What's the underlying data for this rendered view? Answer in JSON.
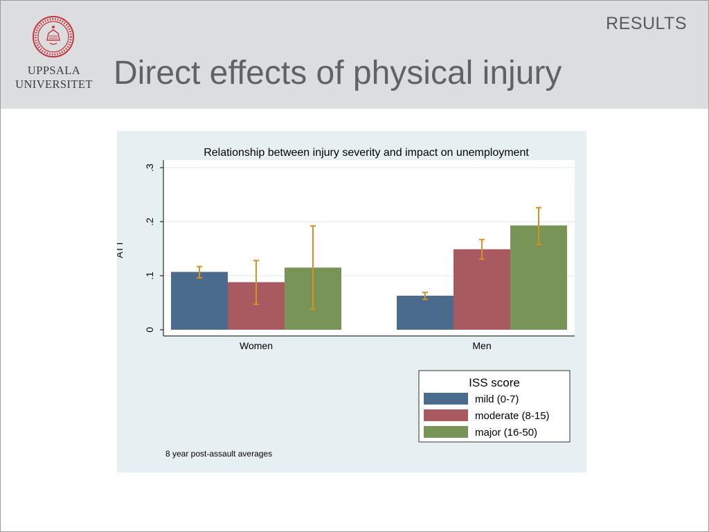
{
  "header": {
    "section_label": "RESULTS",
    "title": "Direct effects of physical injury"
  },
  "logo": {
    "line1": "UPPSALA",
    "line2": "UNIVERSITET",
    "seal_icon": "university-seal-icon"
  },
  "colors": {
    "header_band": "#dcdddf",
    "panel": "#e6eff1",
    "mild": "#4a6b8c",
    "moderate": "#a85a60",
    "major": "#789456",
    "error_bar": "#d99121",
    "seal": "#c8323c"
  },
  "chart_data": {
    "type": "bar",
    "title": "Relationship between injury severity and impact on unemployment",
    "ylabel": "ATT",
    "xlabel": "",
    "ylim": [
      0,
      0.3
    ],
    "yticks": [
      0,
      0.1,
      0.2,
      0.3
    ],
    "ytick_labels": [
      "0",
      ".1",
      ".2",
      ".3"
    ],
    "grid": true,
    "categories": [
      "Women",
      "Men"
    ],
    "series": [
      {
        "name": "mild (0-7)",
        "values": [
          0.107,
          0.063
        ],
        "ci_low": [
          0.096,
          0.056
        ],
        "ci_high": [
          0.117,
          0.069
        ]
      },
      {
        "name": "moderate (8-15)",
        "values": [
          0.088,
          0.149
        ],
        "ci_low": [
          0.047,
          0.131
        ],
        "ci_high": [
          0.128,
          0.167
        ]
      },
      {
        "name": "major (16-50)",
        "values": [
          0.115,
          0.193
        ],
        "ci_low": [
          0.038,
          0.158
        ],
        "ci_high": [
          0.192,
          0.226
        ]
      }
    ],
    "legend": {
      "title": "ISS score",
      "placement": "bottom-right"
    },
    "note": "8 year post-assault averages"
  }
}
